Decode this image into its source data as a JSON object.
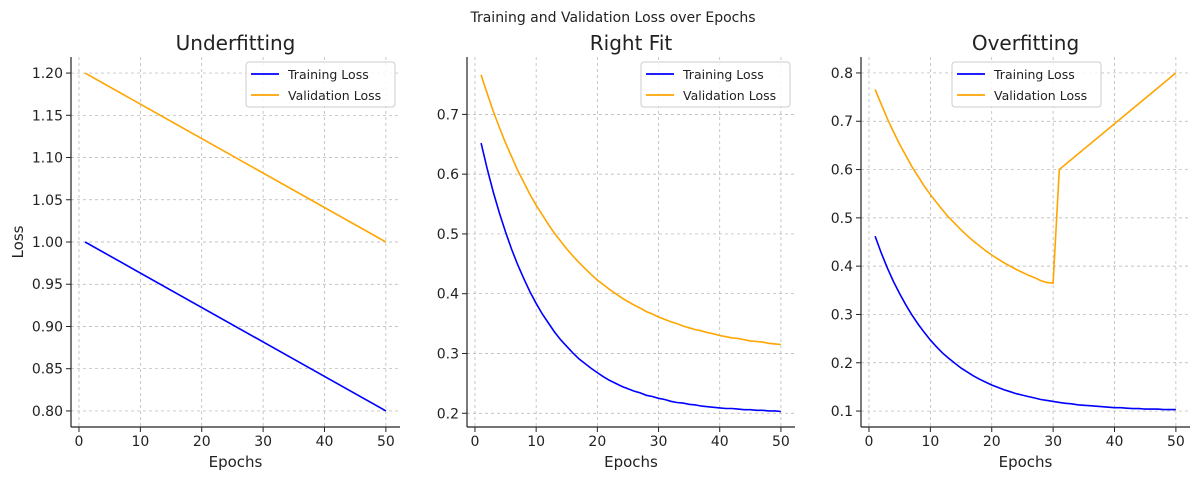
{
  "suptitle": "Training and Validation Loss over Epochs",
  "colors": {
    "training": "#0000ff",
    "validation": "#ffa500",
    "grid": "#b0b0b0"
  },
  "chart_data": [
    {
      "type": "line",
      "title": "Underfitting",
      "xlabel": "Epochs",
      "ylabel": "Loss",
      "xlim": [
        -1.3,
        52.3
      ],
      "ylim": [
        0.781,
        1.219
      ],
      "xticks": [
        0,
        10,
        20,
        30,
        40,
        50
      ],
      "yticks": [
        0.8,
        0.85,
        0.9,
        0.95,
        1.0,
        1.05,
        1.1,
        1.15,
        1.2
      ],
      "ytick_labels": [
        "0.80",
        "0.85",
        "0.90",
        "0.95",
        "1.00",
        "1.05",
        "1.10",
        "1.15",
        "1.20"
      ],
      "grid": true,
      "legend": "top-right",
      "series": [
        {
          "name": "Training Loss",
          "color": "#0000ff",
          "x": [
            1,
            50
          ],
          "y": [
            1.0,
            0.8
          ]
        },
        {
          "name": "Validation Loss",
          "color": "#ffa500",
          "x": [
            1,
            50
          ],
          "y": [
            1.2,
            1.0
          ]
        }
      ]
    },
    {
      "type": "line",
      "title": "Right Fit",
      "xlabel": "Epochs",
      "ylabel": "",
      "xlim": [
        -1.3,
        52.3
      ],
      "ylim": [
        0.177,
        0.796
      ],
      "xticks": [
        0,
        10,
        20,
        30,
        40,
        50
      ],
      "yticks": [
        0.2,
        0.3,
        0.4,
        0.5,
        0.6,
        0.7
      ],
      "ytick_labels": [
        "0.2",
        "0.3",
        "0.4",
        "0.5",
        "0.6",
        "0.7"
      ],
      "grid": true,
      "legend": "top-right",
      "series": [
        {
          "name": "Training Loss",
          "color": "#0000ff",
          "x": [
            1,
            2,
            3,
            4,
            5,
            6,
            7,
            8,
            9,
            10,
            11,
            12,
            13,
            14,
            15,
            16,
            17,
            18,
            19,
            20,
            21,
            22,
            23,
            24,
            25,
            26,
            27,
            28,
            29,
            30,
            31,
            32,
            33,
            34,
            35,
            36,
            37,
            38,
            39,
            40,
            41,
            42,
            43,
            44,
            45,
            46,
            47,
            48,
            49,
            50
          ],
          "y": [
            0.652,
            0.609,
            0.57,
            0.535,
            0.503,
            0.474,
            0.448,
            0.425,
            0.403,
            0.384,
            0.366,
            0.351,
            0.336,
            0.323,
            0.312,
            0.301,
            0.291,
            0.283,
            0.275,
            0.268,
            0.261,
            0.255,
            0.25,
            0.245,
            0.241,
            0.237,
            0.234,
            0.23,
            0.228,
            0.225,
            0.223,
            0.22,
            0.218,
            0.217,
            0.215,
            0.214,
            0.212,
            0.211,
            0.21,
            0.209,
            0.208,
            0.208,
            0.207,
            0.206,
            0.206,
            0.205,
            0.205,
            0.204,
            0.204,
            0.203
          ]
        },
        {
          "name": "Validation Loss",
          "color": "#ffa500",
          "x": [
            1,
            2,
            3,
            4,
            5,
            6,
            7,
            8,
            9,
            10,
            11,
            12,
            13,
            14,
            15,
            16,
            17,
            18,
            19,
            20,
            21,
            22,
            23,
            24,
            25,
            26,
            27,
            28,
            29,
            30,
            31,
            32,
            33,
            34,
            35,
            36,
            37,
            38,
            39,
            40,
            41,
            42,
            43,
            44,
            45,
            46,
            47,
            48,
            49,
            50
          ],
          "y": [
            0.766,
            0.735,
            0.705,
            0.678,
            0.652,
            0.629,
            0.606,
            0.586,
            0.566,
            0.548,
            0.532,
            0.516,
            0.501,
            0.488,
            0.475,
            0.463,
            0.452,
            0.442,
            0.432,
            0.423,
            0.415,
            0.407,
            0.4,
            0.393,
            0.387,
            0.381,
            0.376,
            0.37,
            0.366,
            0.361,
            0.357,
            0.353,
            0.35,
            0.346,
            0.343,
            0.34,
            0.338,
            0.335,
            0.333,
            0.33,
            0.328,
            0.326,
            0.325,
            0.323,
            0.321,
            0.32,
            0.319,
            0.317,
            0.316,
            0.315
          ]
        }
      ]
    },
    {
      "type": "line",
      "title": "Overfitting",
      "xlabel": "Epochs",
      "ylabel": "",
      "xlim": [
        -1.3,
        52.3
      ],
      "ylim": [
        0.067,
        0.833
      ],
      "xticks": [
        0,
        10,
        20,
        30,
        40,
        50
      ],
      "yticks": [
        0.1,
        0.2,
        0.3,
        0.4,
        0.5,
        0.6,
        0.7,
        0.8
      ],
      "ytick_labels": [
        "0.1",
        "0.2",
        "0.3",
        "0.4",
        "0.5",
        "0.6",
        "0.7",
        "0.8"
      ],
      "grid": true,
      "legend": "top-center",
      "series": [
        {
          "name": "Training Loss",
          "color": "#0000ff",
          "x": [
            1,
            2,
            3,
            4,
            5,
            6,
            7,
            8,
            9,
            10,
            11,
            12,
            13,
            14,
            15,
            16,
            17,
            18,
            19,
            20,
            21,
            22,
            23,
            24,
            25,
            26,
            27,
            28,
            29,
            30,
            31,
            32,
            33,
            34,
            35,
            36,
            37,
            38,
            39,
            40,
            41,
            42,
            43,
            44,
            45,
            46,
            47,
            48,
            49,
            50
          ],
          "y": [
            0.462,
            0.427,
            0.396,
            0.368,
            0.343,
            0.32,
            0.299,
            0.28,
            0.263,
            0.247,
            0.233,
            0.22,
            0.209,
            0.199,
            0.189,
            0.181,
            0.173,
            0.166,
            0.16,
            0.154,
            0.149,
            0.144,
            0.14,
            0.136,
            0.133,
            0.13,
            0.127,
            0.124,
            0.122,
            0.12,
            0.118,
            0.116,
            0.115,
            0.113,
            0.112,
            0.111,
            0.11,
            0.109,
            0.108,
            0.107,
            0.107,
            0.106,
            0.105,
            0.105,
            0.104,
            0.104,
            0.104,
            0.103,
            0.103,
            0.103
          ]
        },
        {
          "name": "Validation Loss",
          "color": "#ffa500",
          "x": [
            1,
            2,
            3,
            4,
            5,
            6,
            7,
            8,
            9,
            10,
            11,
            12,
            13,
            14,
            15,
            16,
            17,
            18,
            19,
            20,
            21,
            22,
            23,
            24,
            25,
            26,
            27,
            28,
            29,
            30,
            31,
            50
          ],
          "y": [
            0.766,
            0.735,
            0.705,
            0.678,
            0.652,
            0.629,
            0.606,
            0.586,
            0.566,
            0.548,
            0.532,
            0.516,
            0.501,
            0.488,
            0.475,
            0.463,
            0.452,
            0.442,
            0.432,
            0.423,
            0.415,
            0.407,
            0.4,
            0.393,
            0.387,
            0.381,
            0.376,
            0.37,
            0.366,
            0.365,
            0.6,
            0.8
          ]
        }
      ]
    }
  ]
}
